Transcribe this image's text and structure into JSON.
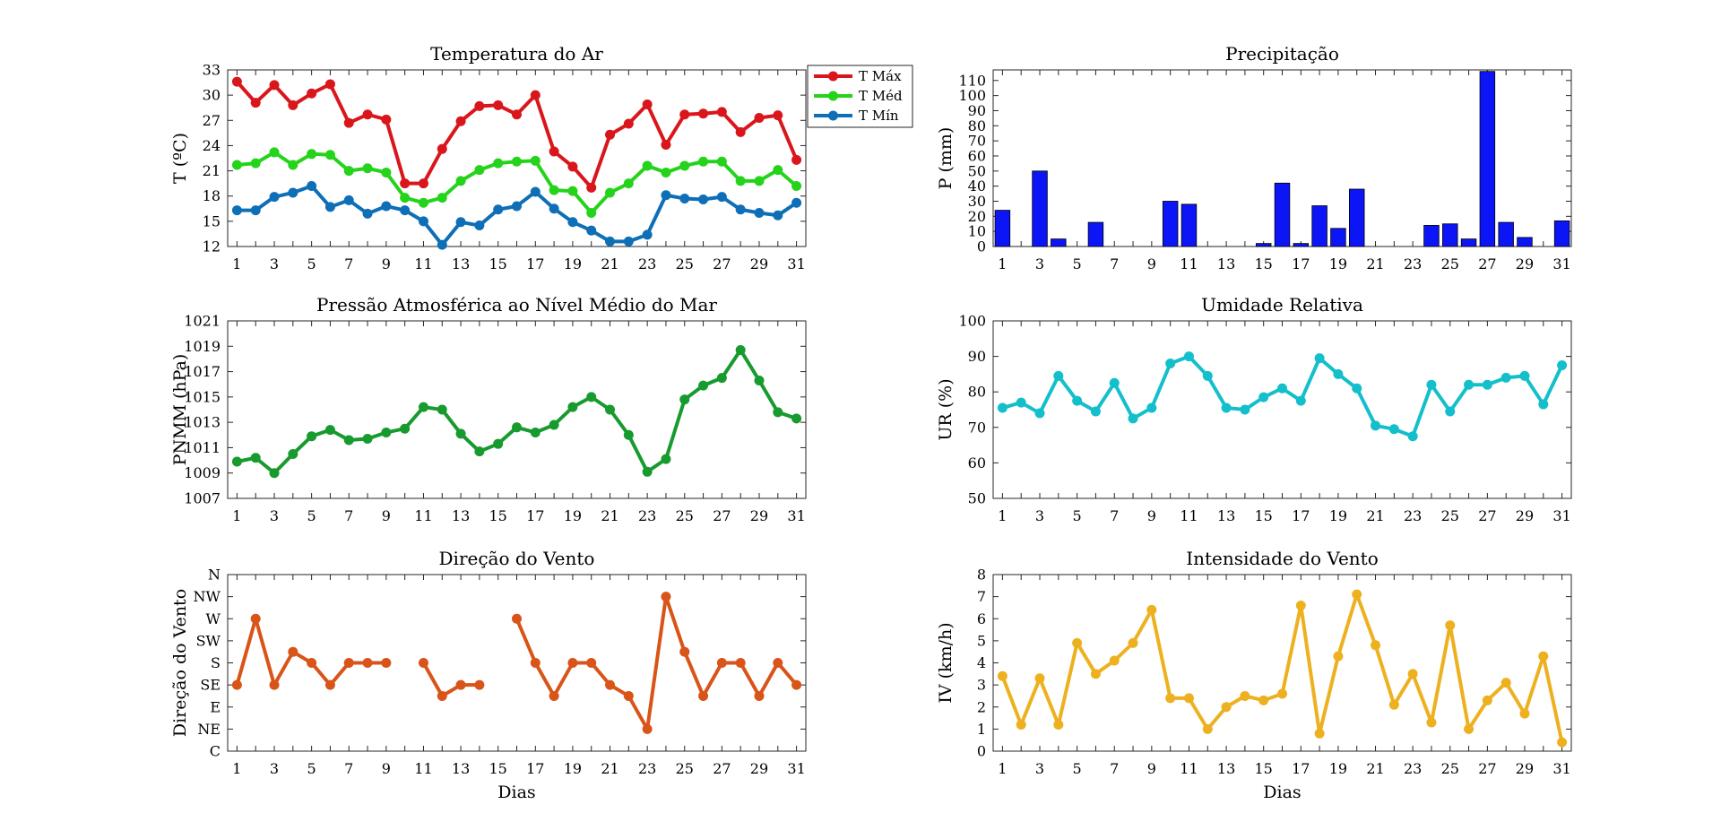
{
  "xlabel": "Dias",
  "chart_data": [
    {
      "id": "temp",
      "type": "line",
      "title": "Temperatura do Ar",
      "xlabel": "",
      "ylabel": "T (ºC)",
      "xlim": [
        0.5,
        31.5
      ],
      "ylim": [
        12,
        33
      ],
      "yticks": [
        12,
        15,
        18,
        21,
        24,
        27,
        30,
        33
      ],
      "legend": "top-right",
      "x": [
        1,
        2,
        3,
        4,
        5,
        6,
        7,
        8,
        9,
        10,
        11,
        12,
        13,
        14,
        15,
        16,
        17,
        18,
        19,
        20,
        21,
        22,
        23,
        24,
        25,
        26,
        27,
        28,
        29,
        30,
        31
      ],
      "series": [
        {
          "name": "T Máx",
          "color": "#d9161b",
          "values": [
            31.6,
            29.1,
            31.2,
            28.8,
            30.2,
            31.3,
            26.7,
            27.7,
            27.1,
            19.5,
            19.5,
            23.6,
            26.9,
            28.7,
            28.8,
            27.7,
            30.0,
            23.3,
            21.5,
            19.0,
            25.3,
            26.6,
            28.9,
            24.1,
            27.7,
            27.8,
            28.0,
            25.6,
            27.3,
            27.6,
            22.3
          ]
        },
        {
          "name": "T Méd",
          "color": "#25d31b",
          "values": [
            21.7,
            21.9,
            23.2,
            21.7,
            23.0,
            22.9,
            21.0,
            21.3,
            20.8,
            17.8,
            17.2,
            17.8,
            19.8,
            21.1,
            21.9,
            22.1,
            22.2,
            18.7,
            18.6,
            16.0,
            18.4,
            19.5,
            21.6,
            20.8,
            21.6,
            22.1,
            22.1,
            19.8,
            19.8,
            21.1,
            19.2
          ]
        },
        {
          "name": "T Mín",
          "color": "#0e6fb7",
          "values": [
            16.3,
            16.3,
            17.9,
            18.4,
            19.2,
            16.7,
            17.5,
            15.9,
            16.8,
            16.3,
            15.0,
            12.2,
            14.9,
            14.5,
            16.4,
            16.8,
            18.5,
            16.5,
            14.9,
            13.9,
            12.6,
            12.6,
            13.4,
            18.1,
            17.7,
            17.6,
            17.9,
            16.4,
            16.0,
            15.7,
            17.2
          ]
        }
      ]
    },
    {
      "id": "prec",
      "type": "bar",
      "title": "Precipitação",
      "xlabel": "",
      "ylabel": "P (mm)",
      "xlim": [
        0.5,
        31.5
      ],
      "ylim": [
        0,
        117
      ],
      "yticks": [
        0,
        10,
        20,
        30,
        40,
        50,
        60,
        70,
        80,
        90,
        100,
        110
      ],
      "color": "#0b15f5",
      "x": [
        1,
        2,
        3,
        4,
        5,
        6,
        7,
        8,
        9,
        10,
        11,
        12,
        13,
        14,
        15,
        16,
        17,
        18,
        19,
        20,
        21,
        22,
        23,
        24,
        25,
        26,
        27,
        28,
        29,
        30,
        31
      ],
      "values": [
        24,
        0,
        50,
        5,
        0,
        16,
        0,
        0,
        0,
        30,
        28,
        0,
        0,
        0,
        2,
        42,
        2,
        27,
        12,
        38,
        0,
        0,
        0,
        14,
        15,
        5,
        116,
        16,
        6,
        0,
        17
      ]
    },
    {
      "id": "pnmm",
      "type": "line",
      "title": "Pressão Atmosférica ao Nível Médio do Mar",
      "xlabel": "",
      "ylabel": "PNMM (hPa)",
      "xlim": [
        0.5,
        31.5
      ],
      "ylim": [
        1007,
        1021
      ],
      "yticks": [
        1007,
        1009,
        1011,
        1013,
        1015,
        1017,
        1019,
        1021
      ],
      "x": [
        1,
        2,
        3,
        4,
        5,
        6,
        7,
        8,
        9,
        10,
        11,
        12,
        13,
        14,
        15,
        16,
        17,
        18,
        19,
        20,
        21,
        22,
        23,
        24,
        25,
        26,
        27,
        28,
        29,
        30,
        31
      ],
      "series": [
        {
          "color": "#179a2e",
          "values": [
            1009.9,
            1010.2,
            1009.0,
            1010.5,
            1011.9,
            1012.4,
            1011.6,
            1011.7,
            1012.2,
            1012.5,
            1014.2,
            1014.0,
            1012.1,
            1010.7,
            1011.3,
            1012.6,
            1012.2,
            1012.8,
            1014.2,
            1015.0,
            1014.0,
            1012.0,
            1009.1,
            1010.1,
            1014.8,
            1015.9,
            1016.5,
            1018.7,
            1016.3,
            1013.8,
            1013.3
          ]
        }
      ]
    },
    {
      "id": "ur",
      "type": "line",
      "title": "Umidade Relativa",
      "xlabel": "",
      "ylabel": "UR (%)",
      "xlim": [
        0.5,
        31.5
      ],
      "ylim": [
        50,
        100
      ],
      "yticks": [
        50,
        60,
        70,
        80,
        90,
        100
      ],
      "x": [
        1,
        2,
        3,
        4,
        5,
        6,
        7,
        8,
        9,
        10,
        11,
        12,
        13,
        14,
        15,
        16,
        17,
        18,
        19,
        20,
        21,
        22,
        23,
        24,
        25,
        26,
        27,
        28,
        29,
        30,
        31
      ],
      "series": [
        {
          "color": "#14bfcc",
          "values": [
            75.5,
            77.0,
            74.0,
            84.5,
            77.5,
            74.5,
            82.5,
            72.5,
            75.5,
            88.0,
            90.0,
            84.5,
            75.5,
            75.0,
            78.5,
            81.0,
            77.5,
            89.5,
            85.0,
            81.0,
            70.5,
            69.5,
            67.5,
            82.0,
            74.5,
            82.0,
            82.0,
            84.0,
            84.5,
            76.5,
            87.5
          ]
        }
      ]
    },
    {
      "id": "dir",
      "type": "line",
      "title": "Direção do Vento",
      "xlabel": "Dias",
      "ylabel": "Direção do Vento",
      "xlim": [
        0.5,
        31.5
      ],
      "ylim": [
        0,
        8
      ],
      "ytick_labels": [
        "C",
        "NE",
        "E",
        "SE",
        "S",
        "SW",
        "W",
        "NW",
        "N"
      ],
      "x": [
        1,
        2,
        3,
        4,
        5,
        6,
        7,
        8,
        9,
        10,
        11,
        12,
        13,
        14,
        15,
        16,
        17,
        18,
        19,
        20,
        21,
        22,
        23,
        24,
        25,
        26,
        27,
        28,
        29,
        30,
        31
      ],
      "series": [
        {
          "color": "#d95418",
          "values": [
            3,
            6,
            3,
            4.5,
            4,
            3,
            4,
            4,
            4,
            null,
            4,
            2.5,
            3,
            3,
            null,
            6,
            4,
            2.5,
            4,
            4,
            3,
            2.5,
            1,
            7,
            4.5,
            2.5,
            4,
            4,
            2.5,
            4,
            3
          ]
        }
      ]
    },
    {
      "id": "iv",
      "type": "line",
      "title": "Intensidade do Vento",
      "xlabel": "Dias",
      "ylabel": "IV (km/h)",
      "xlim": [
        0.5,
        31.5
      ],
      "ylim": [
        0,
        8
      ],
      "yticks": [
        0,
        1,
        2,
        3,
        4,
        5,
        6,
        7,
        8
      ],
      "x": [
        1,
        2,
        3,
        4,
        5,
        6,
        7,
        8,
        9,
        10,
        11,
        12,
        13,
        14,
        15,
        16,
        17,
        18,
        19,
        20,
        21,
        22,
        23,
        24,
        25,
        26,
        27,
        28,
        29,
        30,
        31
      ],
      "series": [
        {
          "color": "#edb120",
          "values": [
            3.4,
            1.2,
            3.3,
            1.2,
            4.9,
            3.5,
            4.1,
            4.9,
            6.4,
            2.4,
            2.4,
            1.0,
            2.0,
            2.5,
            2.3,
            2.6,
            6.6,
            0.8,
            4.3,
            7.1,
            4.8,
            2.1,
            3.5,
            1.3,
            5.7,
            1.0,
            2.3,
            3.1,
            1.7,
            4.3,
            0.4
          ]
        }
      ]
    }
  ]
}
